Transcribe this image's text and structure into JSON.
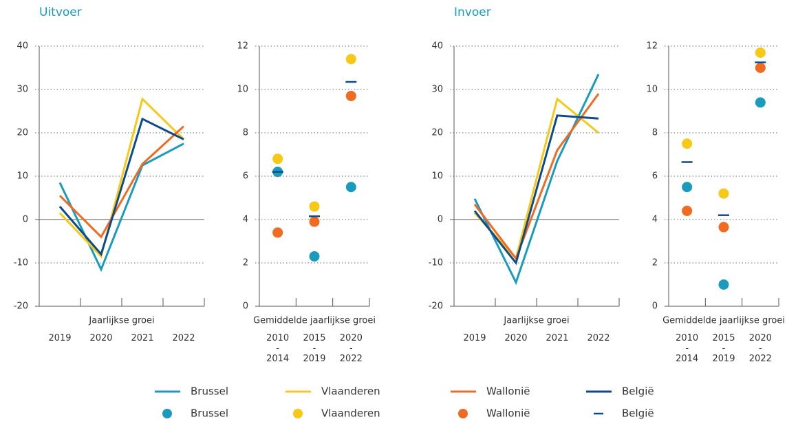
{
  "chart_data": [
    {
      "type": "line",
      "title": "Uitvoer",
      "x_label": "Jaarlijkse groei",
      "categories": [
        "2019",
        "2020",
        "2021",
        "2022"
      ],
      "ylim": [
        -20,
        40
      ],
      "yticks": [
        -20,
        -10,
        0,
        10,
        20,
        30,
        40
      ],
      "grid": true,
      "series": [
        {
          "name": "Brussel",
          "color": "#1a9bbd",
          "values": [
            8.5,
            -11.5,
            12.5,
            17.5
          ]
        },
        {
          "name": "Vlaanderen",
          "color": "#f7c815",
          "values": [
            1.5,
            -8.5,
            27.8,
            18.5
          ]
        },
        {
          "name": "Wallonië",
          "color": "#f06a22",
          "values": [
            5.5,
            -4,
            12.8,
            21.5
          ]
        },
        {
          "name": "België",
          "color": "#0b4a8b",
          "values": [
            3,
            -8,
            23.2,
            18.5
          ]
        }
      ]
    },
    {
      "type": "dot",
      "x_label": "Gemiddelde jaarlijkse groei",
      "categories": [
        "2010\n-\n2014",
        "2015\n-\n2019",
        "2020\n-\n2022"
      ],
      "ylim": [
        0,
        12
      ],
      "yticks": [
        0,
        2,
        4,
        6,
        8,
        10,
        12
      ],
      "grid": true,
      "series": [
        {
          "name": "Brussel",
          "color": "#1a9bbd",
          "marker": "circle",
          "values": [
            6.2,
            2.3,
            5.5
          ]
        },
        {
          "name": "Vlaanderen",
          "color": "#f7c815",
          "marker": "circle",
          "values": [
            6.8,
            4.6,
            11.4
          ]
        },
        {
          "name": "Wallonië",
          "color": "#f06a22",
          "marker": "circle",
          "values": [
            3.4,
            3.9,
            9.7
          ]
        },
        {
          "name": "België",
          "color": "#0b4a8b",
          "marker": "dash",
          "values": [
            6.2,
            4.15,
            10.35
          ]
        }
      ]
    },
    {
      "type": "line",
      "title": "Invoer",
      "x_label": "Jaarlijkse groei",
      "categories": [
        "2019",
        "2020",
        "2021",
        "2022"
      ],
      "ylim": [
        -20,
        40
      ],
      "yticks": [
        -20,
        -10,
        0,
        10,
        20,
        30,
        40
      ],
      "grid": true,
      "series": [
        {
          "name": "Brussel",
          "color": "#1a9bbd",
          "values": [
            4.8,
            -14.5,
            13.5,
            33.5
          ]
        },
        {
          "name": "Vlaanderen",
          "color": "#f7c815",
          "values": [
            1.5,
            -9,
            27.8,
            20
          ]
        },
        {
          "name": "Wallonië",
          "color": "#f06a22",
          "values": [
            3.5,
            -9,
            16,
            29
          ]
        },
        {
          "name": "België",
          "color": "#0b4a8b",
          "values": [
            2,
            -10,
            24,
            23.3
          ]
        }
      ]
    },
    {
      "type": "dot",
      "x_label": "Gemiddelde jaarlijkse groei",
      "categories": [
        "2010\n-\n2014",
        "2015\n-\n2019",
        "2020\n-\n2022"
      ],
      "ylim": [
        0,
        12
      ],
      "yticks": [
        0,
        2,
        4,
        6,
        8,
        10,
        12
      ],
      "grid": true,
      "series": [
        {
          "name": "Brussel",
          "color": "#1a9bbd",
          "marker": "circle",
          "values": [
            5.5,
            1.0,
            9.4
          ]
        },
        {
          "name": "Vlaanderen",
          "color": "#f7c815",
          "marker": "circle",
          "values": [
            7.5,
            5.2,
            11.7
          ]
        },
        {
          "name": "Wallonië",
          "color": "#f06a22",
          "marker": "circle",
          "values": [
            4.4,
            3.65,
            11.0
          ]
        },
        {
          "name": "België",
          "color": "#0b4a8b",
          "marker": "dash",
          "values": [
            6.65,
            4.2,
            11.25
          ]
        }
      ]
    }
  ]
}
